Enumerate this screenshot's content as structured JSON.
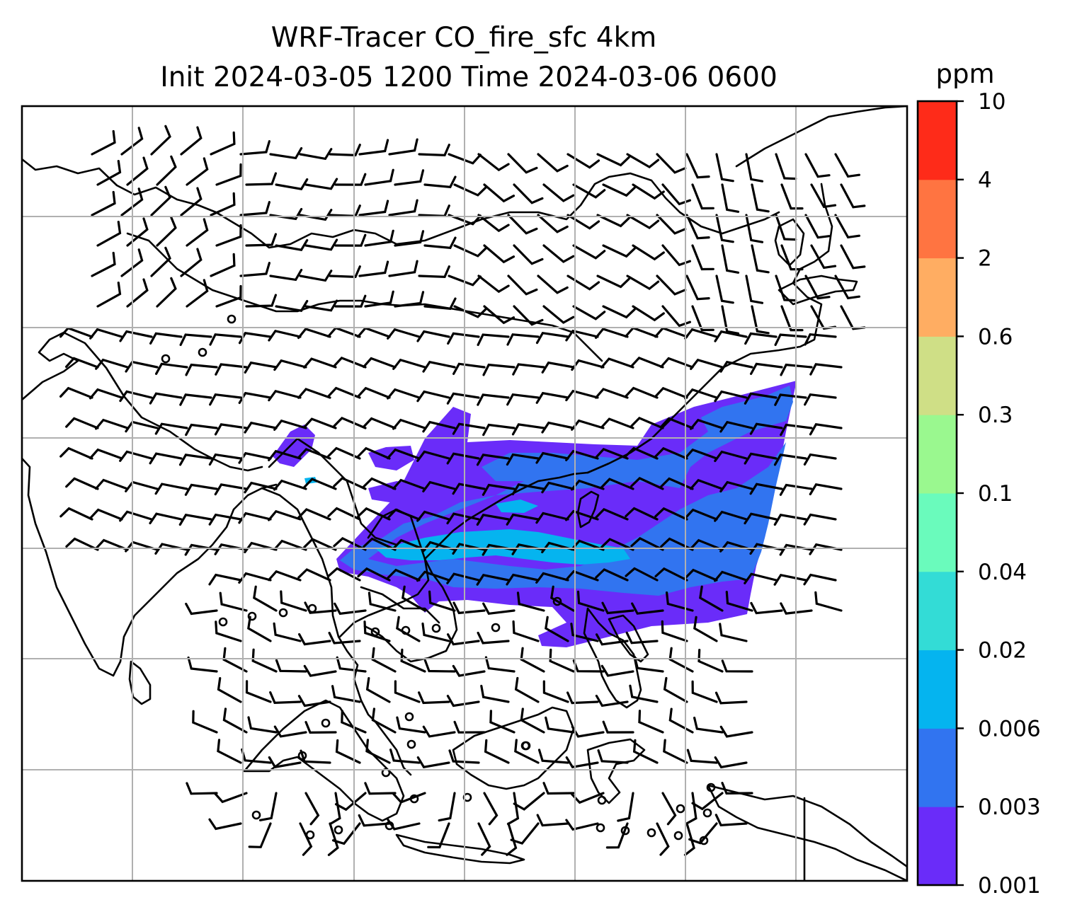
{
  "title": {
    "line1": "WRF-Tracer CO_fire_sfc 4km",
    "line2": "Init 2024-03-05 1200 Time 2024-03-06 0600"
  },
  "colorbar": {
    "unit": "ppm",
    "levels": [
      "0.001",
      "0.003",
      "0.006",
      "0.02",
      "0.04",
      "0.1",
      "0.3",
      "0.6",
      "2",
      "4",
      "10"
    ],
    "colors": [
      "#6a2cf9",
      "#3174f0",
      "#05b4ef",
      "#33dcd6",
      "#6afbbc",
      "#9af88f",
      "#cfdf86",
      "#ffad62",
      "#ff7441",
      "#fe2b19"
    ]
  },
  "map": {
    "gridlines": true,
    "coastlines": true,
    "wind_barbs": true
  },
  "chart_data": {
    "type": "heatmap",
    "variable": "CO_fire_sfc",
    "units": "ppm",
    "levels": [
      0.001,
      0.003,
      0.006,
      0.02,
      0.04,
      0.1,
      0.3,
      0.6,
      2,
      4,
      10
    ],
    "max_level_shown": 0.02,
    "plume": "band across Indochina, South China Sea and western Pacific"
  }
}
